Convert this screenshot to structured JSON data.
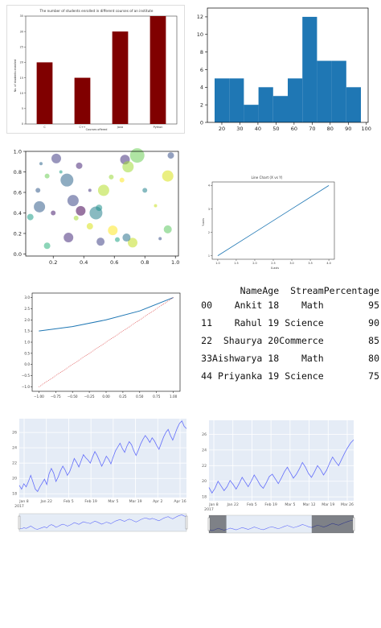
{
  "chart_data": [
    {
      "type": "bar",
      "title": "The number of students enrolled in different courses of an institute",
      "xlabel": "Courses offered",
      "ylabel": "No. of students enrolled",
      "categories": [
        "C",
        "C++",
        "Java",
        "Python"
      ],
      "values": [
        20,
        15,
        30,
        35
      ],
      "ylim": [
        0,
        35
      ],
      "yticks": [
        0,
        5,
        10,
        15,
        20,
        25,
        30,
        35
      ],
      "color": "#800000"
    },
    {
      "type": "bar",
      "subtype": "histogram",
      "bin_edges": [
        16,
        24.1,
        32.2,
        40.3,
        48.4,
        56.5,
        64.6,
        72.7,
        80.8,
        88.9,
        97
      ],
      "values": [
        5,
        5,
        2,
        4,
        3,
        5,
        12,
        7,
        7,
        4
      ],
      "ylim": [
        0,
        13
      ],
      "xlim": [
        12,
        101
      ],
      "xticks": [
        20,
        30,
        40,
        50,
        60,
        70,
        80,
        90,
        100
      ],
      "yticks": [
        0,
        2,
        4,
        6,
        8,
        10,
        12
      ],
      "color": "#1f77b4"
    },
    {
      "type": "scatter",
      "xlim": [
        0.02,
        1.02
      ],
      "ylim": [
        -0.02,
        1.0
      ],
      "xticks": [
        "0.2",
        "0.4",
        "0.6",
        "0.8",
        "1.0"
      ],
      "yticks": [
        "0.0",
        "0.2",
        "0.4",
        "0.6",
        "0.8",
        "1.0"
      ],
      "points": [
        {
          "x": 0.22,
          "y": 0.93,
          "s": 6,
          "c": "#433e85"
        },
        {
          "x": 0.11,
          "y": 0.46,
          "s": 7,
          "c": "#355f8d"
        },
        {
          "x": 0.05,
          "y": 0.36,
          "s": 4,
          "c": "#1f9e89"
        },
        {
          "x": 0.29,
          "y": 0.72,
          "s": 8,
          "c": "#31688e"
        },
        {
          "x": 0.37,
          "y": 0.86,
          "s": 4,
          "c": "#482878"
        },
        {
          "x": 0.16,
          "y": 0.76,
          "s": 3,
          "c": "#6ece58"
        },
        {
          "x": 0.33,
          "y": 0.52,
          "s": 7,
          "c": "#3e4989"
        },
        {
          "x": 0.38,
          "y": 0.42,
          "s": 6,
          "c": "#440154"
        },
        {
          "x": 0.48,
          "y": 0.4,
          "s": 8,
          "c": "#26828e"
        },
        {
          "x": 0.5,
          "y": 0.45,
          "s": 4,
          "c": "#21918c"
        },
        {
          "x": 0.53,
          "y": 0.62,
          "s": 7,
          "c": "#b5de2b"
        },
        {
          "x": 0.67,
          "y": 0.92,
          "s": 6,
          "c": "#46327e"
        },
        {
          "x": 0.69,
          "y": 0.85,
          "s": 7,
          "c": "#a0da39"
        },
        {
          "x": 0.75,
          "y": 0.96,
          "s": 9,
          "c": "#6ece58"
        },
        {
          "x": 0.95,
          "y": 0.76,
          "s": 7,
          "c": "#d8e219"
        },
        {
          "x": 0.97,
          "y": 0.96,
          "s": 4,
          "c": "#3b528b"
        },
        {
          "x": 0.95,
          "y": 0.24,
          "s": 5,
          "c": "#5ec962"
        },
        {
          "x": 0.72,
          "y": 0.11,
          "s": 6,
          "c": "#c2df23"
        },
        {
          "x": 0.68,
          "y": 0.16,
          "s": 5,
          "c": "#2c728e"
        },
        {
          "x": 0.59,
          "y": 0.23,
          "s": 6,
          "c": "#fde725"
        },
        {
          "x": 0.51,
          "y": 0.12,
          "s": 5,
          "c": "#414487"
        },
        {
          "x": 0.3,
          "y": 0.16,
          "s": 6,
          "c": "#472d7b"
        },
        {
          "x": 0.16,
          "y": 0.08,
          "s": 4,
          "c": "#2db27d"
        },
        {
          "x": 0.44,
          "y": 0.27,
          "s": 4,
          "c": "#d8e219"
        },
        {
          "x": 0.2,
          "y": 0.4,
          "s": 3,
          "c": "#481f70"
        },
        {
          "x": 0.62,
          "y": 0.14,
          "s": 3,
          "c": "#20a486"
        },
        {
          "x": 0.1,
          "y": 0.62,
          "s": 3,
          "c": "#365c8d"
        },
        {
          "x": 0.58,
          "y": 0.75,
          "s": 3,
          "c": "#9bd93c"
        },
        {
          "x": 0.8,
          "y": 0.62,
          "s": 3,
          "c": "#25848e"
        },
        {
          "x": 0.44,
          "y": 0.62,
          "s": 2,
          "c": "#453781"
        },
        {
          "x": 0.25,
          "y": 0.8,
          "s": 2,
          "c": "#1fa088"
        },
        {
          "x": 0.87,
          "y": 0.47,
          "s": 2,
          "c": "#c8e020"
        },
        {
          "x": 0.65,
          "y": 0.72,
          "s": 3,
          "c": "#fde725"
        },
        {
          "x": 0.9,
          "y": 0.15,
          "s": 2,
          "c": "#3b528b"
        },
        {
          "x": 0.35,
          "y": 0.35,
          "s": 3,
          "c": "#a5db36"
        },
        {
          "x": 0.12,
          "y": 0.88,
          "s": 2,
          "c": "#31688e"
        }
      ]
    },
    {
      "type": "line",
      "title": "Line Chart (X vs Y)",
      "xlabel": "X-axis",
      "ylabel": "Y-axis",
      "x": [
        1,
        2,
        3,
        4
      ],
      "y": [
        1,
        2,
        3,
        4
      ],
      "xlim": [
        0.85,
        4.15
      ],
      "ylim": [
        0.85,
        4.15
      ],
      "xticks": [
        "1.0",
        "1.5",
        "2.0",
        "2.5",
        "3.0",
        "3.5",
        "4.0"
      ],
      "yticks": [
        "1",
        "2",
        "3",
        "4"
      ]
    },
    {
      "type": "line",
      "xlim": [
        -1.1,
        1.1
      ],
      "ylim": [
        -1.2,
        3.2
      ],
      "xticks": [
        "−1.00",
        "−0.75",
        "−0.50",
        "−0.25",
        "0.00",
        "0.25",
        "0.50",
        "0.75",
        "1.00"
      ],
      "yticks": [
        "−1.0",
        "−0.5",
        "0.0",
        "0.5",
        "1.0",
        "1.5",
        "2.0",
        "2.5",
        "3.0"
      ],
      "series": [
        {
          "x": [
            -1,
            -0.5,
            0,
            0.5,
            1
          ],
          "y": [
            1.5,
            1.7,
            2.0,
            2.4,
            3.0
          ],
          "color": "#1f77b4",
          "style": "solid"
        },
        {
          "x": [
            -1,
            1
          ],
          "y": [
            -1.0,
            3.0
          ],
          "color": "#d62728",
          "style": "dotted"
        }
      ]
    },
    {
      "type": "table",
      "columns": [
        "",
        "",
        "Name",
        "Age",
        "Stream",
        "Percentage"
      ],
      "rows": [
        [
          "0",
          "0",
          "Ankit",
          "18",
          "Math",
          "95"
        ],
        [
          "1",
          "1",
          "Rahul",
          "19",
          "Science",
          "90"
        ],
        [
          "2",
          "2",
          "Shaurya",
          "20",
          "Commerce",
          "85"
        ],
        [
          "3",
          "3",
          "Aishwarya",
          "18",
          "Math",
          "80"
        ],
        [
          "4",
          "4",
          "Priyanka",
          "19",
          "Science",
          "75"
        ]
      ]
    },
    {
      "type": "line",
      "xticks": [
        "Jan 8",
        "Jan 22",
        "Feb 5",
        "Feb 19",
        "Mar 5",
        "Mar 19",
        "Apr 2",
        "Apr 16"
      ],
      "x_year": "2017",
      "yticks": [
        "18",
        "20",
        "22",
        "24",
        "26"
      ],
      "ylim": [
        17.5,
        27.8
      ],
      "y": [
        19.1,
        18.6,
        19.3,
        18.9,
        19.6,
        20.4,
        19.5,
        18.6,
        18.3,
        18.9,
        19.4,
        19.9,
        19.2,
        20.6,
        21.3,
        20.7,
        19.6,
        20.2,
        21.0,
        21.6,
        21.1,
        20.4,
        20.9,
        21.7,
        22.6,
        22.1,
        21.5,
        22.3,
        23.1,
        22.7,
        22.4,
        22.0,
        22.8,
        23.5,
        23.0,
        22.3,
        21.6,
        22.2,
        22.9,
        22.5,
        21.9,
        22.8,
        23.6,
        24.1,
        24.6,
        23.9,
        23.4,
        24.2,
        24.8,
        24.4,
        23.6,
        23.0,
        23.7,
        24.5,
        25.1,
        25.6,
        25.2,
        24.7,
        25.3,
        24.9,
        24.3,
        23.8,
        24.6,
        25.4,
        26.0,
        26.4,
        25.6,
        25.0,
        25.8,
        26.6,
        27.2,
        27.5,
        26.8,
        26.5
      ],
      "color": "#636efa"
    },
    {
      "type": "line",
      "xticks": [
        "Jan 8",
        "Jan 22",
        "Feb 5",
        "Feb 19",
        "Mar 5",
        "Mar 12",
        "Mar 19",
        "Mar 26"
      ],
      "x_year": "2017",
      "yticks": [
        "18",
        "20",
        "22",
        "24",
        "26"
      ],
      "ylim": [
        17.5,
        27.8
      ],
      "y": [
        19.2,
        18.5,
        19.1,
        20.0,
        19.4,
        18.8,
        19.3,
        20.1,
        19.6,
        19.0,
        19.7,
        20.5,
        19.9,
        19.3,
        20.0,
        20.8,
        20.2,
        19.5,
        19.1,
        19.8,
        20.6,
        20.9,
        20.3,
        19.7,
        20.4,
        21.2,
        21.8,
        21.1,
        20.4,
        20.9,
        21.6,
        22.4,
        21.8,
        21.0,
        20.5,
        21.2,
        22.0,
        21.5,
        20.8,
        21.4,
        22.3,
        23.1,
        22.5,
        22.0,
        22.8,
        23.6,
        24.3,
        24.9,
        25.3
      ],
      "color": "#636efa"
    }
  ]
}
